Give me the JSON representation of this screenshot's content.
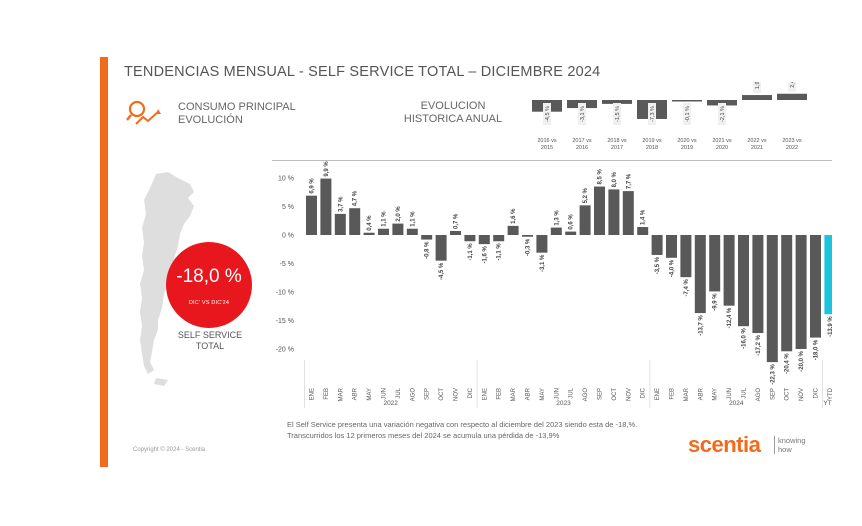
{
  "header": {
    "title": "TENDENCIAS MENSUAL - SELF SERVICE TOTAL –   DICIEMBRE 2024",
    "subtitle_line1": "CONSUMO PRINCIPAL",
    "subtitle_line2": "EVOLUCIÓN",
    "annual_title_line1": "EVOLUCION",
    "annual_title_line2": "HISTORICA ANUAL"
  },
  "kpi": {
    "value": "-18,0 %",
    "caption": "DIC' VS DIC'24",
    "label_line1": "SELF SERVICE",
    "label_line2": "TOTAL"
  },
  "footer": {
    "copyright": "Copyright © 2024 - Scentia",
    "note": "El Self Service presenta una variación negativa con respecto al diciembre del 2023 siendo esta de -18,%. Transcurridos los 12 primeros meses del 2024 se acumula una pérdida de -13,9%",
    "brand": "scentia",
    "tagline_line1": "knowing",
    "tagline_line2": "how"
  },
  "colors": {
    "accent": "#f26b1d",
    "kpi_red": "#e8171d",
    "bar_dark": "#595959",
    "bar_ytd": "#1fc3e0"
  },
  "chart_data": [
    {
      "type": "bar",
      "categories": [
        "2016 vs 2015",
        "2017 vs 2016",
        "2018 vs 2017",
        "2019 vs 2018",
        "2020 vs 2019",
        "2021 vs 2020",
        "2022 vs 2021",
        "2023 vs 2022"
      ],
      "values": [
        -4.5,
        -3.1,
        -1.5,
        -7.3,
        -0.1,
        -2.1,
        1.9,
        2.4
      ],
      "value_labels": [
        "-4,5 %",
        "-3,1 %",
        "-1,5 %",
        "-7,3 %",
        "-0,1 %",
        "-2,1 %",
        "1,9 %",
        "2,4 %"
      ]
    },
    {
      "type": "bar",
      "categories": [
        "ENE",
        "FEB",
        "MAR",
        "ABR",
        "MAY",
        "JUN",
        "JUL",
        "AGO",
        "SEP",
        "OCT",
        "NOV",
        "DIC",
        "ENE",
        "FEB",
        "MAR",
        "ABR",
        "MAY",
        "JUN",
        "JUL",
        "AGO",
        "SEP",
        "OCT",
        "NOV",
        "DIC",
        "ENE",
        "FEB",
        "MAR",
        "ABR",
        "MAY",
        "JUN",
        "JUL",
        "AGO",
        "SEP",
        "OCT",
        "NOV",
        "DIC",
        "YTD"
      ],
      "values": [
        6.9,
        9.9,
        3.7,
        4.7,
        0.4,
        1.1,
        2.0,
        1.1,
        -0.8,
        -4.5,
        0.7,
        -1.1,
        -1.6,
        -1.1,
        1.6,
        -0.3,
        -3.1,
        1.3,
        0.6,
        5.2,
        8.5,
        8.0,
        7.7,
        1.4,
        -3.5,
        -4.0,
        -7.4,
        -13.7,
        -9.9,
        -12.4,
        -16.0,
        -17.2,
        -22.3,
        -20.4,
        -20.0,
        -18.0,
        -13.9
      ],
      "value_labels": [
        "6,9 %",
        "9,9 %",
        "3,7 %",
        "4,7 %",
        "0,4 %",
        "1,1 %",
        "2,0 %",
        "1,1 %",
        "-0,8 %",
        "-4,5 %",
        "0,7 %",
        "-1,1 %",
        "-1,6 %",
        "-1,1 %",
        "1,6 %",
        "-0,3 %",
        "-3,1 %",
        "1,3 %",
        "0,6 %",
        "5,2 %",
        "8,5 %",
        "8,0 %",
        "7,7 %",
        "1,4 %",
        "-3,5 %",
        "-4,0 %",
        "-7,4 %",
        "-13,7 %",
        "-9,9 %",
        "-12,4 %",
        "-16,0 %",
        "-17,2 %",
        "-22,3 %",
        "-20,4 %",
        "-20,0 %",
        "-18,0 %",
        "-13,9 %"
      ],
      "year_groups": [
        {
          "label": "2022",
          "start": 0,
          "end": 11
        },
        {
          "label": "2023",
          "start": 12,
          "end": 23
        },
        {
          "label": "2024",
          "start": 24,
          "end": 35
        },
        {
          "label": "YTD",
          "start": 36,
          "end": 36
        }
      ],
      "yticks": [
        10,
        5,
        0,
        -5,
        -10,
        -15,
        -20
      ],
      "ytick_labels": [
        "10 %",
        "5 %",
        "0 %",
        "-5 %",
        "-10 %",
        "-15 %",
        "-20 %"
      ],
      "ylim": [
        -22.3,
        11
      ],
      "grid": false
    }
  ]
}
